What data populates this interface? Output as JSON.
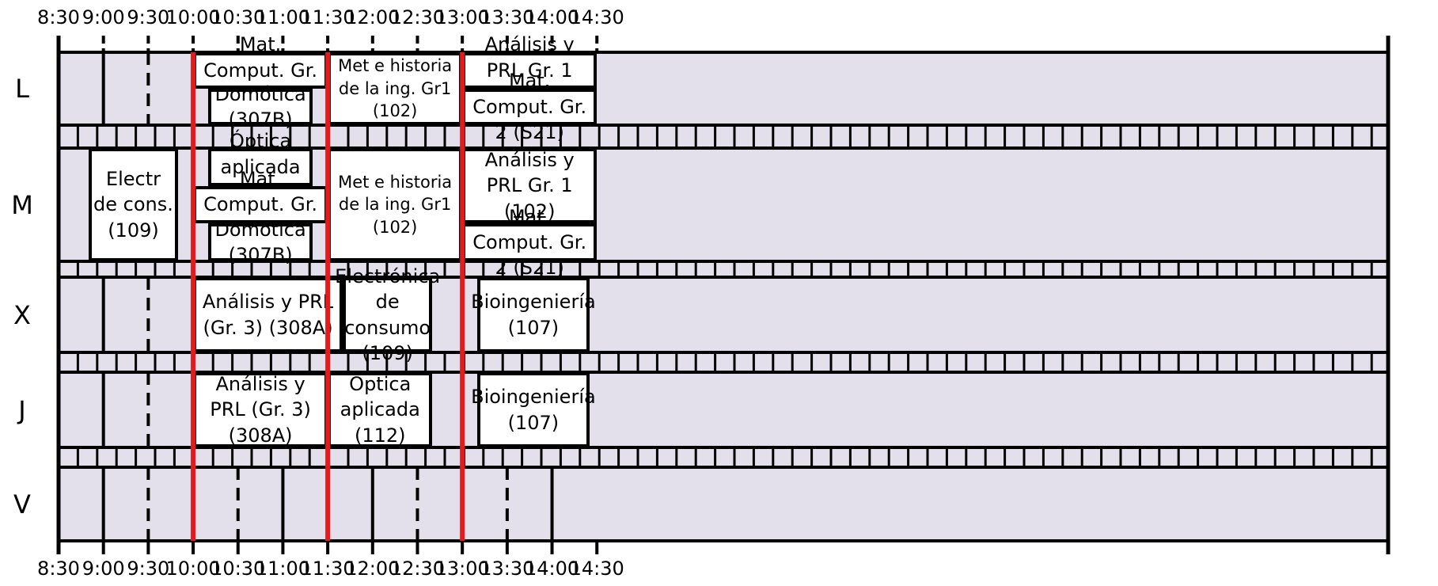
{
  "time_labels": [
    "8:30",
    "9:00",
    "9:30",
    "10:00",
    "10:30",
    "11:00",
    "11:30",
    "12:00",
    "12:30",
    "13:00",
    "13:30",
    "14:00",
    "14:30"
  ],
  "days": [
    "L",
    "M",
    "X",
    "J",
    "V"
  ],
  "colors": {
    "free": "#e3e0ec",
    "class": "#ffffff",
    "line": "#000000",
    "marker": "#e8191c"
  },
  "events": [
    {
      "day": 0,
      "start": "10:00",
      "end": "11:30",
      "rows": [
        0,
        1,
        2
      ],
      "text": "Mat. Comput. Gr. 1 (S21)"
    },
    {
      "day": 0,
      "start": "10:10",
      "end": "11:20",
      "rows": [
        1,
        2,
        2
      ],
      "text": "Domótica (307B)"
    },
    {
      "day": 0,
      "start": "11:30",
      "end": "13:00",
      "rows": [
        0,
        2,
        2
      ],
      "text": "Met e historia de la ing. Gr1 (102)"
    },
    {
      "day": 0,
      "start": "13:00",
      "end": "14:30",
      "rows": [
        0,
        1,
        2
      ],
      "text": "Análisis y PRL Gr. 1  (102)"
    },
    {
      "day": 0,
      "start": "13:00",
      "end": "14:30",
      "rows": [
        1,
        2,
        2
      ],
      "text": "Mat. Comput. Gr. 2 (S21)"
    },
    {
      "day": 1,
      "start": "8:50",
      "end": "9:50",
      "rows": [
        0,
        3,
        3
      ],
      "text": "Electr de cons. (109)"
    },
    {
      "day": 1,
      "start": "10:10",
      "end": "11:20",
      "rows": [
        0,
        1,
        3
      ],
      "text": "Óptica aplicada (112)"
    },
    {
      "day": 1,
      "start": "10:00",
      "end": "11:30",
      "rows": [
        1,
        2,
        3
      ],
      "text": "Mat. Comput. Gr. 1 (S21)"
    },
    {
      "day": 1,
      "start": "10:10",
      "end": "11:20",
      "rows": [
        2,
        3,
        3
      ],
      "text": "Domótica (307B)"
    },
    {
      "day": 1,
      "start": "11:30",
      "end": "13:00",
      "rows": [
        0,
        3,
        3
      ],
      "text": "Met e historia de la ing. Gr1 (102)"
    },
    {
      "day": 1,
      "start": "13:00",
      "end": "14:30",
      "rows": [
        0,
        2,
        3
      ],
      "text": "Análisis y PRL Gr. 1  (102)"
    },
    {
      "day": 1,
      "start": "13:00",
      "end": "14:30",
      "rows": [
        2,
        3,
        3
      ],
      "text": "Mat. Comput. Gr. 2 (S21)"
    },
    {
      "day": 2,
      "start": "10:00",
      "end": "11:40",
      "rows": [
        0,
        1,
        1
      ],
      "text": "Análisis y PRL (Gr. 3) (308A)"
    },
    {
      "day": 2,
      "start": "11:40",
      "end": "12:40",
      "rows": [
        0,
        1,
        1
      ],
      "text": "Electrónica de consumo (109)"
    },
    {
      "day": 2,
      "start": "13:10",
      "end": "14:25",
      "rows": [
        0,
        1,
        1
      ],
      "text": "Bioingeniería (107)"
    },
    {
      "day": 3,
      "start": "10:00",
      "end": "11:30",
      "rows": [
        0,
        1,
        1
      ],
      "text": "Análisis y PRL (Gr. 3) (308A)"
    },
    {
      "day": 3,
      "start": "11:30",
      "end": "12:40",
      "rows": [
        0,
        1,
        1
      ],
      "text": "Óptica aplicada (112)"
    },
    {
      "day": 3,
      "start": "13:10",
      "end": "14:25",
      "rows": [
        0,
        1,
        1
      ],
      "text": "Bioingeniería (107)"
    }
  ],
  "red_markers": [
    "10:00",
    "11:30",
    "13:00"
  ],
  "dashed_hours": [
    "9:30",
    "10:30",
    "12:30",
    "13:30"
  ]
}
